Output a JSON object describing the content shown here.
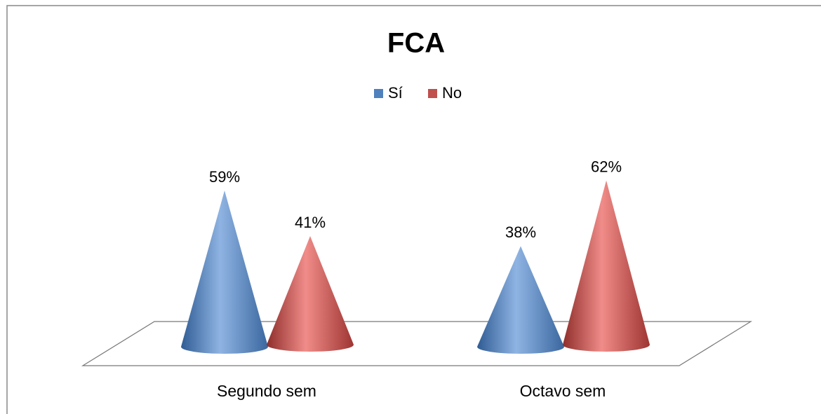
{
  "chart_data": {
    "type": "cone",
    "title": "FCA",
    "categories": [
      "Segundo sem",
      "Octavo sem"
    ],
    "series": [
      {
        "name": "Sí",
        "color": "#4f81bd",
        "values": [
          59,
          38
        ],
        "value_labels": [
          "59%",
          "38%"
        ]
      },
      {
        "name": "No",
        "color": "#c0504d",
        "values": [
          41,
          62
        ],
        "value_labels": [
          "41%",
          "62%"
        ]
      }
    ],
    "legend": "top"
  }
}
